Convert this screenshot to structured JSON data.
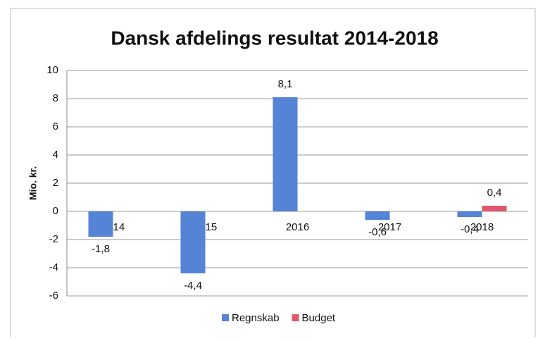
{
  "chart_data": {
    "type": "bar",
    "title": "Dansk afdelings resultat 2014-2018",
    "y_label": "Mio. kr.",
    "categories": [
      "2014",
      "2015",
      "2016",
      "2017",
      "2018"
    ],
    "series": [
      {
        "name": "Regnskab",
        "color": "#5583d6",
        "values": [
          -1.8,
          -4.4,
          8.1,
          -0.6,
          -0.4
        ],
        "value_labels": [
          "-1,8",
          "-4,4",
          "8,1",
          "-0,6",
          "-0,4"
        ]
      },
      {
        "name": "Budget",
        "color": "#e2566a",
        "values": [
          null,
          null,
          null,
          null,
          0.4
        ],
        "value_labels": [
          null,
          null,
          null,
          null,
          "0,4"
        ]
      }
    ],
    "ylim": [
      -6,
      10
    ],
    "yticks": [
      -6,
      -4,
      -2,
      0,
      2,
      4,
      6,
      8,
      10
    ],
    "grid": true,
    "legend": "bottom"
  }
}
